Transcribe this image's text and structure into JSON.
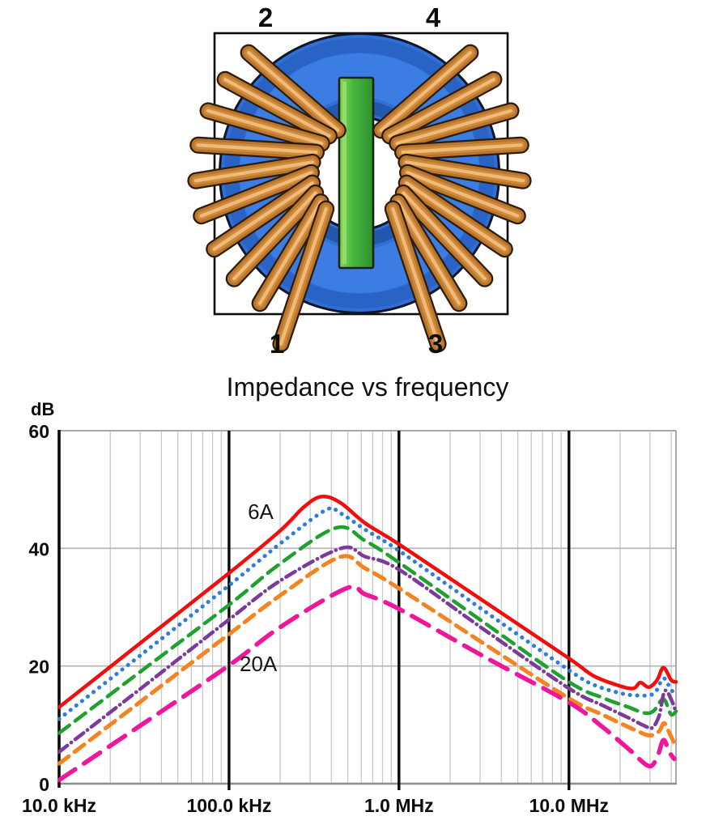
{
  "diagram": {
    "terminals": {
      "top_left": "2",
      "top_right": "4",
      "bottom_left": "1",
      "bottom_right": "3"
    },
    "colors": {
      "core_ring": "#2f6ed6",
      "winding_copper": "#bd7a30",
      "center_bar": "#46b63c"
    }
  },
  "chart": {
    "title": "Impedance vs frequency",
    "y_axis": {
      "unit": "dB"
    },
    "annotations": [
      {
        "text": "6A"
      },
      {
        "text": "20A"
      }
    ]
  },
  "chart_data": {
    "type": "line",
    "title": "Impedance vs frequency",
    "x_axis": {
      "scale": "log",
      "unit": "Hz",
      "range": [
        10000,
        42700000
      ],
      "tick_values": [
        10000,
        100000,
        1000000,
        10000000
      ],
      "tick_labels": [
        "10.0 kHz",
        "100.0 kHz",
        "1.0 MHz",
        "10.0 MHz"
      ]
    },
    "y_axis": {
      "unit": "dB",
      "range": [
        0,
        60
      ],
      "tick_values": [
        0,
        20,
        40,
        60
      ],
      "gridlines": [
        20,
        40
      ]
    },
    "legend": "none",
    "annotations": [
      {
        "text": "6A",
        "refers_to": "top curve"
      },
      {
        "text": "20A",
        "refers_to": "bottom curve"
      }
    ],
    "series": [
      {
        "label": "6A",
        "style": "solid",
        "color": "#f10e0e",
        "width": 4.5,
        "dash": "",
        "points": [
          [
            10000,
            13
          ],
          [
            31600,
            24.4
          ],
          [
            100000,
            35.8
          ],
          [
            200000,
            43
          ],
          [
            275000,
            47
          ],
          [
            350000,
            48.8
          ],
          [
            450000,
            47.8
          ],
          [
            631000,
            44.3
          ],
          [
            1000000,
            40.7
          ],
          [
            3162000,
            31
          ],
          [
            10000000,
            21.3
          ],
          [
            14000000,
            18.3
          ],
          [
            20000000,
            16.6
          ],
          [
            24000000,
            16.2
          ],
          [
            26300000,
            17.2
          ],
          [
            29500000,
            16.4
          ],
          [
            33000000,
            17.6
          ],
          [
            36000000,
            19.7
          ],
          [
            40000000,
            17.6
          ],
          [
            42700000,
            17.3
          ]
        ]
      },
      {
        "label": "",
        "style": "dotted",
        "color": "#2b7de0",
        "width": 5,
        "dash": "0.2 8.8",
        "points": [
          [
            10000,
            11
          ],
          [
            31600,
            22.3
          ],
          [
            100000,
            33.7
          ],
          [
            200000,
            40.8
          ],
          [
            370000,
            46.5
          ],
          [
            450000,
            46
          ],
          [
            631000,
            43.2
          ],
          [
            1000000,
            39.6
          ],
          [
            3162000,
            29.4
          ],
          [
            10000000,
            19.3
          ],
          [
            14000000,
            16.8
          ],
          [
            20000000,
            15.4
          ],
          [
            25000000,
            15.0
          ],
          [
            31600000,
            15.3
          ],
          [
            36000000,
            17.9
          ],
          [
            40000000,
            15.9
          ],
          [
            42700000,
            15.6
          ]
        ]
      },
      {
        "label": "",
        "style": "dashed",
        "color": "#1ea12d",
        "width": 4.5,
        "dash": "16 9",
        "points": [
          [
            10000,
            8.6
          ],
          [
            31600,
            19.5
          ],
          [
            100000,
            30.4
          ],
          [
            200000,
            37.4
          ],
          [
            427000,
            43.5
          ],
          [
            631000,
            41.3
          ],
          [
            1000000,
            37.6
          ],
          [
            3162000,
            27.4
          ],
          [
            10000000,
            17.3
          ],
          [
            15800000,
            14.6
          ],
          [
            22400000,
            13.0
          ],
          [
            28000000,
            12.0
          ],
          [
            31600000,
            12.4
          ],
          [
            36000000,
            14.4
          ],
          [
            39800000,
            11.8
          ],
          [
            42700000,
            12.3
          ]
        ]
      },
      {
        "label": "",
        "style": "dash-dot",
        "color": "#7b3a9c",
        "width": 4.5,
        "dash": "13 6 0.3 6",
        "points": [
          [
            10000,
            5.4
          ],
          [
            31600,
            16.6
          ],
          [
            100000,
            27.9
          ],
          [
            200000,
            34.5
          ],
          [
            457000,
            40
          ],
          [
            631000,
            38.6
          ],
          [
            1000000,
            36.4
          ],
          [
            3162000,
            26.2
          ],
          [
            10000000,
            16.2
          ],
          [
            15800000,
            13.3
          ],
          [
            22400000,
            11.2
          ],
          [
            28000000,
            9.8
          ],
          [
            30900000,
            9.5
          ],
          [
            33900000,
            11.5
          ],
          [
            36700000,
            15.8
          ],
          [
            40700000,
            13.8
          ],
          [
            42700000,
            12.0
          ]
        ]
      },
      {
        "label": "",
        "style": "dashed",
        "color": "#f5831f",
        "width": 5,
        "dash": "15 9",
        "points": [
          [
            10000,
            3.4
          ],
          [
            31600,
            14.4
          ],
          [
            100000,
            25.4
          ],
          [
            200000,
            32
          ],
          [
            447000,
            38.5
          ],
          [
            631000,
            36.6
          ],
          [
            1000000,
            33.2
          ],
          [
            3162000,
            23.8
          ],
          [
            10000000,
            14.5
          ],
          [
            15800000,
            11.7
          ],
          [
            25000000,
            9.0
          ],
          [
            30000000,
            8.2
          ],
          [
            33900000,
            8.9
          ],
          [
            36300000,
            10.3
          ],
          [
            38900000,
            8.7
          ],
          [
            41700000,
            6.9
          ],
          [
            42700000,
            6.6
          ]
        ]
      },
      {
        "label": "20A",
        "style": "long-dash",
        "color": "#ef169b",
        "width": 5.5,
        "dash": "24 13",
        "points": [
          [
            10000,
            0.6
          ],
          [
            31600,
            10.3
          ],
          [
            100000,
            20.1
          ],
          [
            200000,
            26.6
          ],
          [
            490000,
            33.2
          ],
          [
            631000,
            32.2
          ],
          [
            1000000,
            29.7
          ],
          [
            3162000,
            21.6
          ],
          [
            10000000,
            13.8
          ],
          [
            15800000,
            9.6
          ],
          [
            22400000,
            5.9
          ],
          [
            29500000,
            3.0
          ],
          [
            33100000,
            4.6
          ],
          [
            36000000,
            7.4
          ],
          [
            38900000,
            5.4
          ],
          [
            41700000,
            4.2
          ]
        ]
      }
    ]
  }
}
